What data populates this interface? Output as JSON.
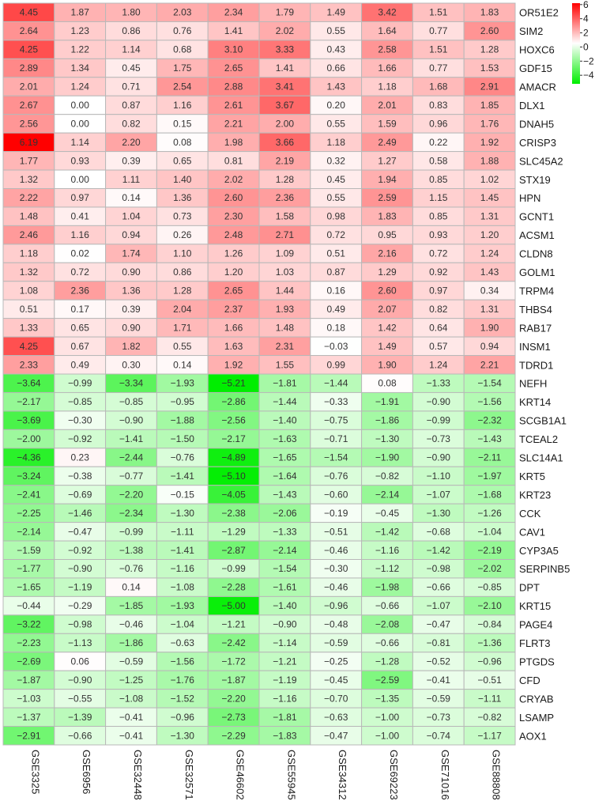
{
  "chart_data": {
    "type": "heatmap",
    "title": "",
    "xlabel": "",
    "ylabel": "",
    "columns": [
      "GSE3325",
      "GSE6956",
      "GSE32448",
      "GSE32571",
      "GSE46602",
      "GSE55945",
      "GSE34312",
      "GSE69223",
      "GSE71016",
      "GSE88808"
    ],
    "rows": [
      "OR51E2",
      "SIM2",
      "HOXC6",
      "GDF15",
      "AMACR",
      "DLX1",
      "DNAH5",
      "CRISP3",
      "SLC45A2",
      "STX19",
      "HPN",
      "GCNT1",
      "ACSM1",
      "CLDN8",
      "GOLM1",
      "TRPM4",
      "THBS4",
      "RAB17",
      "INSM1",
      "TDRD1",
      "NEFH",
      "KRT14",
      "SCGB1A1",
      "TCEAL2",
      "SLC14A1",
      "KRT5",
      "KRT23",
      "CCK",
      "CAV1",
      "CYP3A5",
      "SERPINB5",
      "DPT",
      "KRT15",
      "PAGE4",
      "FLRT3",
      "PTGDS",
      "CFD",
      "CRYAB",
      "LSAMP",
      "AOX1"
    ],
    "values": [
      [
        4.45,
        1.87,
        1.8,
        2.03,
        2.34,
        1.79,
        1.49,
        3.42,
        1.51,
        1.83
      ],
      [
        2.64,
        1.23,
        0.86,
        0.76,
        1.41,
        2.02,
        0.55,
        1.64,
        0.77,
        2.6
      ],
      [
        4.25,
        1.22,
        1.14,
        0.68,
        3.1,
        3.33,
        0.43,
        2.58,
        1.51,
        1.28
      ],
      [
        2.89,
        1.34,
        0.45,
        1.75,
        2.65,
        1.41,
        0.66,
        1.66,
        0.77,
        1.53
      ],
      [
        2.01,
        1.24,
        0.71,
        2.54,
        2.88,
        3.41,
        1.43,
        1.18,
        1.68,
        2.91
      ],
      [
        2.67,
        0.0,
        0.87,
        1.16,
        2.61,
        3.67,
        0.2,
        2.01,
        0.83,
        1.85
      ],
      [
        2.56,
        0.0,
        0.82,
        0.15,
        2.21,
        2.0,
        0.55,
        1.59,
        0.96,
        1.76
      ],
      [
        6.19,
        1.14,
        2.2,
        0.08,
        1.98,
        3.66,
        1.18,
        2.49,
        0.22,
        1.92
      ],
      [
        1.77,
        0.93,
        0.39,
        0.65,
        0.81,
        2.19,
        0.32,
        1.27,
        0.58,
        1.88
      ],
      [
        1.32,
        0.0,
        1.11,
        1.4,
        2.02,
        1.28,
        0.45,
        1.94,
        0.85,
        1.02
      ],
      [
        2.22,
        0.97,
        0.14,
        1.36,
        2.6,
        2.36,
        0.55,
        2.59,
        1.15,
        1.45
      ],
      [
        1.48,
        0.41,
        1.04,
        0.73,
        2.3,
        1.58,
        0.98,
        1.83,
        0.85,
        1.31
      ],
      [
        2.46,
        1.16,
        0.94,
        0.26,
        2.48,
        2.71,
        0.72,
        0.95,
        0.93,
        1.2
      ],
      [
        1.18,
        0.02,
        1.74,
        1.1,
        1.26,
        1.09,
        0.51,
        2.16,
        0.72,
        1.24
      ],
      [
        1.32,
        0.72,
        0.9,
        0.86,
        1.2,
        1.03,
        0.87,
        1.29,
        0.92,
        1.43
      ],
      [
        1.08,
        2.36,
        1.36,
        1.28,
        2.65,
        1.44,
        0.16,
        2.6,
        0.97,
        0.34
      ],
      [
        0.51,
        0.17,
        0.39,
        2.04,
        2.37,
        1.93,
        0.49,
        2.07,
        0.82,
        1.31
      ],
      [
        1.33,
        0.65,
        0.9,
        1.71,
        1.66,
        1.48,
        0.18,
        1.42,
        0.64,
        1.9
      ],
      [
        4.25,
        0.67,
        1.82,
        0.55,
        1.63,
        2.31,
        -0.03,
        1.49,
        0.57,
        0.94
      ],
      [
        2.33,
        0.49,
        0.3,
        0.14,
        1.92,
        1.55,
        0.99,
        1.9,
        1.24,
        2.21
      ],
      [
        -3.64,
        -0.99,
        -3.34,
        -1.93,
        -5.21,
        -1.81,
        -1.44,
        0.08,
        -1.33,
        -1.54
      ],
      [
        -2.17,
        -0.85,
        -0.85,
        -0.95,
        -2.86,
        -1.44,
        -0.33,
        -1.91,
        -0.9,
        -1.56
      ],
      [
        -3.69,
        -0.3,
        -0.9,
        -1.88,
        -2.56,
        -1.4,
        -0.75,
        -1.86,
        -0.99,
        -2.32
      ],
      [
        -2.0,
        -0.92,
        -1.41,
        -1.5,
        -2.17,
        -1.63,
        -0.71,
        -1.3,
        -0.73,
        -1.43
      ],
      [
        -4.36,
        0.23,
        -2.44,
        -0.76,
        -4.89,
        -1.65,
        -1.54,
        -1.9,
        -0.9,
        -2.11
      ],
      [
        -3.24,
        -0.38,
        -0.77,
        -1.41,
        -5.1,
        -1.64,
        -0.76,
        -0.82,
        -1.1,
        -1.97
      ],
      [
        -2.41,
        -0.69,
        -2.2,
        -0.15,
        -4.05,
        -1.43,
        -0.6,
        -2.14,
        -1.07,
        -1.68
      ],
      [
        -2.25,
        -1.46,
        -2.34,
        -1.3,
        -2.38,
        -2.06,
        -0.19,
        -0.45,
        -1.3,
        -1.26
      ],
      [
        -2.14,
        -0.47,
        -0.99,
        -1.11,
        -1.29,
        -1.33,
        -0.51,
        -1.42,
        -0.68,
        -1.04
      ],
      [
        -1.59,
        -0.92,
        -1.38,
        -1.41,
        -2.87,
        -2.14,
        -0.46,
        -1.16,
        -1.42,
        -2.19
      ],
      [
        -1.77,
        -0.9,
        -0.76,
        -1.16,
        -0.99,
        -1.54,
        -0.3,
        -1.12,
        -0.98,
        -2.02
      ],
      [
        -1.65,
        -1.19,
        0.14,
        -1.08,
        -2.28,
        -1.61,
        -0.46,
        -1.98,
        -0.66,
        -0.85
      ],
      [
        -0.44,
        -0.29,
        -1.85,
        -1.93,
        -5.0,
        -1.4,
        -0.96,
        -0.66,
        -1.07,
        -2.1
      ],
      [
        -3.22,
        -0.98,
        -0.46,
        -1.04,
        -1.21,
        -0.9,
        -0.48,
        -2.08,
        -0.47,
        -0.84
      ],
      [
        -2.23,
        -1.13,
        -1.86,
        -0.63,
        -2.42,
        -1.14,
        -0.59,
        -0.66,
        -0.81,
        -1.36
      ],
      [
        -2.69,
        0.06,
        -0.59,
        -1.56,
        -1.72,
        -1.21,
        -0.25,
        -1.28,
        -0.52,
        -0.96
      ],
      [
        -1.87,
        -0.9,
        -1.25,
        -1.76,
        -1.87,
        -1.19,
        -0.45,
        -2.59,
        -0.41,
        -0.51
      ],
      [
        -1.03,
        -0.55,
        -1.08,
        -1.52,
        -2.2,
        -1.16,
        -0.7,
        -1.35,
        -0.59,
        -1.11
      ],
      [
        -1.37,
        -1.39,
        -0.41,
        -0.96,
        -2.73,
        -1.81,
        -0.63,
        -1.0,
        -0.73,
        -0.82
      ],
      [
        -2.91,
        -0.66,
        -0.41,
        -1.3,
        -2.29,
        -1.83,
        -0.47,
        -1.0,
        -0.74,
        -1.17
      ]
    ],
    "color_scale": {
      "min": -5.21,
      "max": 6.19,
      "low_color": "#00ee00",
      "mid_color": "#ffffff",
      "high_color": "#ff0000",
      "legend_ticks": [
        6,
        4,
        2,
        0,
        -2,
        -4
      ],
      "legend_placement": "top-right"
    },
    "grid": true
  }
}
